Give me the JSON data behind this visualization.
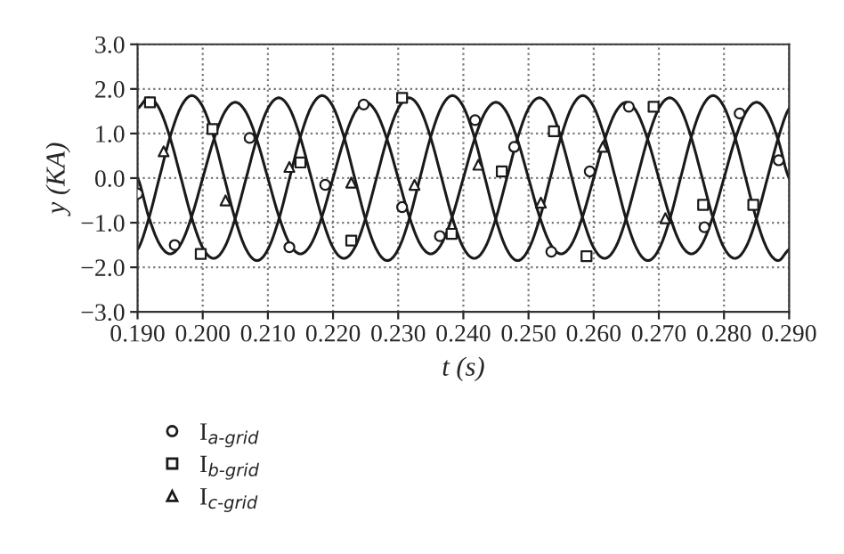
{
  "chart_data": {
    "type": "line",
    "xlabel": "t (s)",
    "ylabel": "y (KA)",
    "xlim": [
      0.19,
      0.29
    ],
    "xticks": [
      {
        "value": 0.19,
        "label": "0.190"
      },
      {
        "value": 0.2,
        "label": "0.200"
      },
      {
        "value": 0.21,
        "label": "0.210"
      },
      {
        "value": 0.22,
        "label": "0.220"
      },
      {
        "value": 0.23,
        "label": "0.230"
      },
      {
        "value": 0.24,
        "label": "0.240"
      },
      {
        "value": 0.25,
        "label": "0.250"
      },
      {
        "value": 0.26,
        "label": "0.260"
      },
      {
        "value": 0.27,
        "label": "0.270"
      },
      {
        "value": 0.28,
        "label": "0.280"
      },
      {
        "value": 0.29,
        "label": "0.290"
      }
    ],
    "ylim": [
      -3,
      3
    ],
    "yticks": [
      {
        "value": -3,
        "label": "−3.0"
      },
      {
        "value": -2,
        "label": "−2.0"
      },
      {
        "value": -1,
        "label": "−1.0"
      },
      {
        "value": 0,
        "label": "0.0"
      },
      {
        "value": 1,
        "label": "1.0"
      },
      {
        "value": 2,
        "label": "2.0"
      },
      {
        "value": 3,
        "label": "3.0"
      }
    ],
    "grid": true,
    "legend": "bottom",
    "line_style": "solid",
    "x": [
      0.19,
      0.19167,
      0.19333,
      0.195,
      0.19667,
      0.19833,
      0.2,
      0.20167,
      0.20333,
      0.205,
      0.20667,
      0.20833,
      0.21,
      0.21167,
      0.21333,
      0.215,
      0.21667,
      0.21833,
      0.22,
      0.22167,
      0.22333,
      0.225,
      0.22667,
      0.22833,
      0.23,
      0.23167,
      0.23333,
      0.235,
      0.23667,
      0.23833,
      0.24,
      0.24167,
      0.24333,
      0.245,
      0.24667,
      0.24833,
      0.25,
      0.25167,
      0.25333,
      0.255,
      0.25667,
      0.25833,
      0.26,
      0.26167,
      0.26333,
      0.265,
      0.26667,
      0.26833,
      0.27,
      0.27167,
      0.27333,
      0.275,
      0.27667,
      0.27833,
      0.28,
      0.28167,
      0.28333,
      0.285,
      0.28667,
      0.28833,
      0.29
    ],
    "series": [
      {
        "color": "#1a1a1a",
        "values": [
          1.56,
          1.8,
          1.56,
          0.9,
          0,
          -0.9,
          -1.56,
          -1.8,
          -1.56,
          -0.9,
          0,
          0.9,
          1.56,
          1.8,
          1.56,
          0.9,
          0,
          -0.9,
          -1.56,
          -1.8,
          -1.56,
          -0.9,
          0,
          0.9,
          1.56,
          1.8,
          1.56,
          0.9,
          0,
          -0.9,
          -1.56,
          -1.8,
          -1.56,
          -0.9,
          0,
          0.9,
          1.56,
          1.8,
          1.56,
          0.9,
          0,
          -0.9,
          -1.56,
          -1.8,
          -1.56,
          -0.9,
          0,
          0.9,
          1.56,
          1.8,
          1.56,
          0.9,
          0,
          -0.9,
          -1.56,
          -1.8,
          -1.56,
          -0.9,
          0,
          0.9,
          1.56
        ]
      },
      {
        "color": "#1a1a1a",
        "values": [
          -1.6,
          -0.93,
          0,
          0.93,
          1.6,
          1.85,
          1.6,
          0.93,
          0,
          -0.93,
          -1.6,
          -1.85,
          -1.6,
          -0.93,
          0,
          0.93,
          1.6,
          1.85,
          1.6,
          0.93,
          0,
          -0.93,
          -1.6,
          -1.85,
          -1.6,
          -0.93,
          0,
          0.93,
          1.6,
          1.85,
          1.6,
          0.93,
          0,
          -0.93,
          -1.6,
          -1.85,
          -1.6,
          -0.93,
          0,
          0.93,
          1.6,
          1.85,
          1.6,
          0.93,
          0,
          -0.93,
          -1.6,
          -1.85,
          -1.6,
          -0.93,
          0,
          0.93,
          1.6,
          1.85,
          1.6,
          0.93,
          0,
          -0.93,
          -1.6,
          -1.85,
          -1.6
        ]
      },
      {
        "color": "#1a1a1a",
        "values": [
          0,
          -0.85,
          -1.47,
          -1.7,
          -1.47,
          -0.85,
          0,
          0.85,
          1.47,
          1.7,
          1.47,
          0.85,
          0,
          -0.85,
          -1.47,
          -1.7,
          -1.47,
          -0.85,
          0,
          0.85,
          1.47,
          1.7,
          1.47,
          0.85,
          0,
          -0.85,
          -1.47,
          -1.7,
          -1.47,
          -0.85,
          0,
          0.85,
          1.47,
          1.7,
          1.47,
          0.85,
          0,
          -0.85,
          -1.47,
          -1.7,
          -1.47,
          -0.85,
          0,
          0.85,
          1.47,
          1.7,
          1.47,
          0.85,
          0,
          -0.85,
          -1.47,
          -1.7,
          -1.47,
          -0.85,
          0,
          0.85,
          1.47,
          1.7,
          1.47,
          0.85,
          0
        ]
      },
      {
        "type": "scatter",
        "name": "I$_{a‐grid}$",
        "color": "#1a1a1a",
        "marker": "circle",
        "x": [
          0.19,
          0.1957,
          0.2072,
          0.2133,
          0.2188,
          0.2247,
          0.2306,
          0.2364,
          0.2418,
          0.2478,
          0.2535,
          0.2594,
          0.2654,
          0.271,
          0.277,
          0.2824,
          0.2884
        ],
        "values": [
          -0.35,
          -1.5,
          0.9,
          -1.55,
          -0.15,
          1.65,
          -0.65,
          -1.3,
          1.3,
          0.7,
          -1.65,
          0.15,
          1.6,
          null,
          -1.1,
          1.45,
          0.4
        ]
      },
      {
        "type": "scatter",
        "name": "I$_{b‐grid}$",
        "color": "#1a1a1a",
        "marker": "square",
        "x": [
          0.1919,
          0.1997,
          0.2015,
          0.215,
          0.2228,
          0.2306,
          0.2382,
          0.2459,
          0.2539,
          0.2589,
          0.2692,
          0.2768,
          0.2845
        ],
        "values": [
          1.7,
          -1.7,
          1.1,
          0.35,
          -1.4,
          1.8,
          -1.25,
          0.15,
          1.05,
          -1.75,
          1.6,
          -0.6,
          -0.6
        ]
      },
      {
        "type": "scatter",
        "name": "I$_{c‐grid}$",
        "color": "#1a1a1a",
        "marker": "triangle",
        "x": [
          0.194,
          0.2035,
          0.2133,
          0.2228,
          0.2325,
          0.2423,
          0.2519,
          0.2614,
          0.271
        ],
        "values": [
          0.6,
          -0.5,
          0.25,
          -0.1,
          -0.15,
          0.3,
          -0.55,
          0.7,
          -0.9
        ]
      }
    ]
  }
}
